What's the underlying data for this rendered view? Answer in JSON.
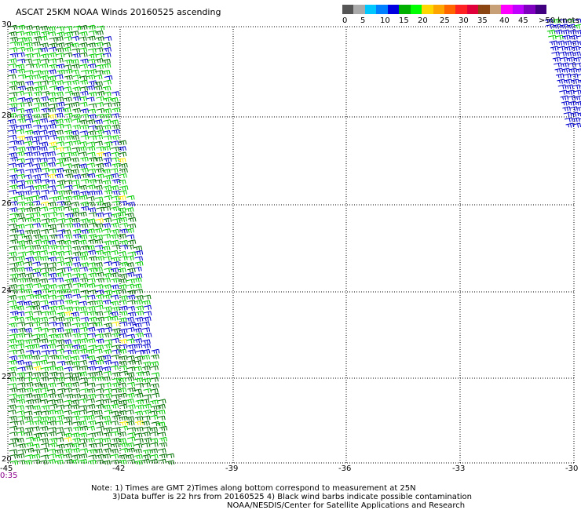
{
  "title": "ASCAT 25KM NOAA Winds 20160525 ascending",
  "colorbar": {
    "labels": [
      "0",
      "5",
      "10",
      "15",
      "20",
      "25",
      "30",
      "35",
      "40",
      "45",
      ">50 knots"
    ],
    "colors": [
      "#555555",
      "#aaaaaa",
      "#00c8ff",
      "#0080ff",
      "#0000e0",
      "#00b000",
      "#00ff00",
      "#ffd700",
      "#ffa500",
      "#ff6600",
      "#ff2222",
      "#e0003a",
      "#8b4513",
      "#c8a078",
      "#ff00ff",
      "#c000ff",
      "#8000c0",
      "#400080"
    ]
  },
  "axes": {
    "y_labels": [
      "30",
      "28",
      "26",
      "24",
      "22",
      "20"
    ],
    "x_labels": [
      "-45",
      "-42",
      "-39",
      "-36",
      "-33",
      "-30"
    ]
  },
  "time_label": "0:35",
  "notes": [
    "Note: 1) Times are GMT 2)Times along bottom correspond to measurement at 25N",
    "3)Data buffer is 22 hrs from 20160525 4) Black wind barbs indicate possible contamination",
    "NOAA/NESDIS/Center for Satellite Applications and Research"
  ],
  "wind_colors": {
    "light_green": "#00cc00",
    "dark_green": "#007000",
    "blue": "#0000cc",
    "yellow": "#ffee00"
  }
}
